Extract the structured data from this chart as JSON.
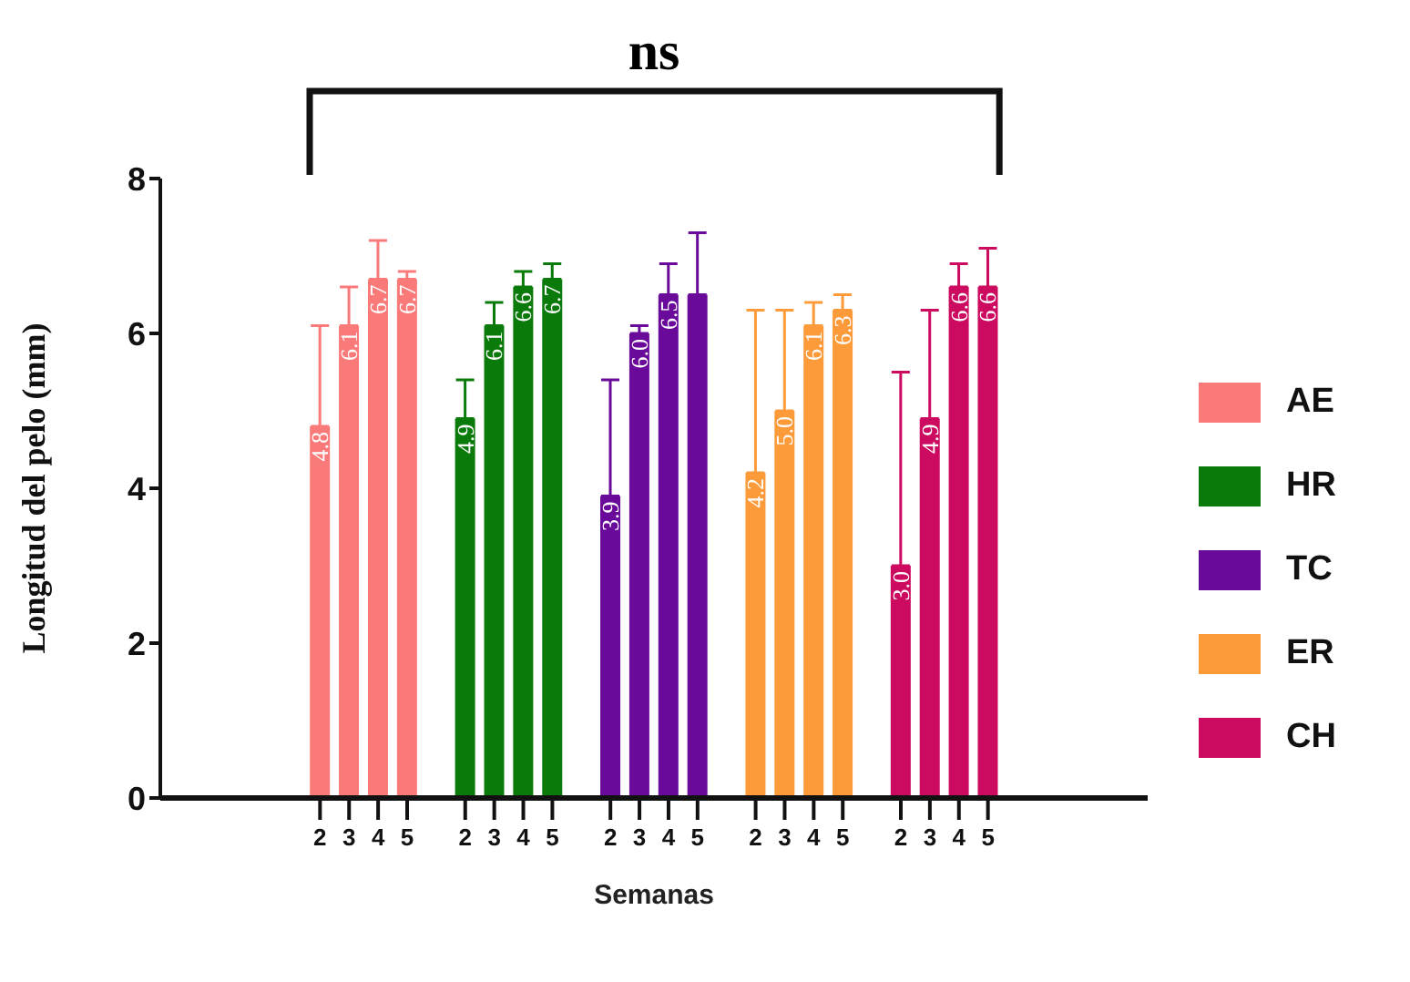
{
  "chart_data": {
    "type": "bar",
    "ylabel": "Longitud del pelo (mm)",
    "xlabel": "Semanas",
    "annotations": [
      "ns"
    ],
    "categories": [
      null,
      null,
      null,
      null,
      null,
      "2",
      "3",
      "4",
      "5",
      null,
      "2",
      "3",
      "4",
      "5",
      null,
      "2",
      "3",
      "4",
      "5",
      null,
      "2",
      "3",
      "4",
      "5",
      null,
      "2",
      "3",
      "4",
      "5",
      null,
      null,
      null,
      null,
      null
    ],
    "series": [
      {
        "name": "AE",
        "color": "#fa7a7a",
        "values": [
          null,
          null,
          null,
          null,
          null,
          4.8,
          6.1,
          6.7,
          6.7,
          null,
          null,
          null,
          null,
          null,
          null,
          null,
          null,
          null,
          null,
          null,
          null,
          null,
          null,
          null,
          null,
          null,
          null,
          null,
          null,
          null,
          null,
          null,
          null,
          null
        ],
        "errors": [
          null,
          null,
          null,
          null,
          null,
          [
            4.8,
            6.1
          ],
          [
            6.1,
            6.6
          ],
          [
            6.7,
            7.2
          ],
          [
            6.7,
            6.8
          ],
          null,
          null,
          null,
          null,
          null,
          null,
          null,
          null,
          null,
          null,
          null,
          null,
          null,
          null,
          null,
          null,
          null,
          null,
          null,
          null,
          null,
          null,
          null,
          null,
          null
        ],
        "value_labels": [
          null,
          null,
          null,
          null,
          null,
          "4.8",
          "6.1",
          "6.7",
          "6.7",
          null,
          null,
          null,
          null,
          null,
          null,
          null,
          null,
          null,
          null,
          null,
          null,
          null,
          null,
          null,
          null,
          null,
          null,
          null,
          null,
          null,
          null,
          null,
          null,
          null
        ]
      },
      {
        "name": "HR",
        "color": "#0a7a0a",
        "values": [
          null,
          null,
          null,
          null,
          null,
          null,
          null,
          null,
          null,
          null,
          4.9,
          6.1,
          6.6,
          6.7,
          null,
          null,
          null,
          null,
          null,
          null,
          null,
          null,
          null,
          null,
          null,
          null,
          null,
          null,
          null,
          null,
          null,
          null,
          null,
          null
        ],
        "errors": [
          null,
          null,
          null,
          null,
          null,
          null,
          null,
          null,
          null,
          null,
          [
            4.9,
            5.4
          ],
          [
            6.1,
            6.4
          ],
          [
            6.6,
            6.8
          ],
          [
            6.7,
            6.9
          ],
          null,
          null,
          null,
          null,
          null,
          null,
          null,
          null,
          null,
          null,
          null,
          null,
          null,
          null,
          null,
          null,
          null,
          null,
          null,
          null
        ],
        "value_labels": [
          null,
          null,
          null,
          null,
          null,
          null,
          null,
          null,
          null,
          null,
          "4.9",
          "6.1",
          "6.6",
          "6.7",
          null,
          null,
          null,
          null,
          null,
          null,
          null,
          null,
          null,
          null,
          null,
          null,
          null,
          null,
          null,
          null,
          null,
          null,
          null,
          null
        ]
      },
      {
        "name": "TC",
        "color": "#6a0a9a",
        "values": [
          null,
          null,
          null,
          null,
          null,
          null,
          null,
          null,
          null,
          null,
          null,
          null,
          null,
          null,
          null,
          3.9,
          6.0,
          6.5,
          6.5,
          null,
          null,
          null,
          null,
          null,
          null,
          null,
          null,
          null,
          null,
          null,
          null,
          null,
          null,
          null
        ],
        "errors": [
          null,
          null,
          null,
          null,
          null,
          null,
          null,
          null,
          null,
          null,
          null,
          null,
          null,
          null,
          null,
          [
            3.9,
            5.4
          ],
          [
            6.0,
            6.1
          ],
          [
            6.5,
            6.9
          ],
          [
            6.5,
            7.3
          ],
          null,
          null,
          null,
          null,
          null,
          null,
          null,
          null,
          null,
          null,
          null,
          null,
          null,
          null,
          null
        ],
        "value_labels": [
          null,
          null,
          null,
          null,
          null,
          null,
          null,
          null,
          null,
          null,
          null,
          null,
          null,
          null,
          null,
          "3.9",
          "6.0",
          "6.5",
          null,
          null,
          null,
          null,
          null,
          null,
          null,
          null,
          null,
          null,
          null,
          null,
          null,
          null,
          null,
          null
        ]
      },
      {
        "name": "ER",
        "color": "#fd9a3a",
        "values": [
          null,
          null,
          null,
          null,
          null,
          null,
          null,
          null,
          null,
          null,
          null,
          null,
          null,
          null,
          null,
          null,
          null,
          null,
          null,
          null,
          4.2,
          5.0,
          6.1,
          6.3,
          null,
          null,
          null,
          null,
          null,
          null,
          null,
          null,
          null,
          null
        ],
        "errors": [
          null,
          null,
          null,
          null,
          null,
          null,
          null,
          null,
          null,
          null,
          null,
          null,
          null,
          null,
          null,
          null,
          null,
          null,
          null,
          null,
          [
            4.2,
            6.3
          ],
          [
            5.0,
            6.3
          ],
          [
            6.1,
            6.4
          ],
          [
            6.3,
            6.5
          ],
          null,
          null,
          null,
          null,
          null,
          null,
          null,
          null,
          null,
          null
        ],
        "value_labels": [
          null,
          null,
          null,
          null,
          null,
          null,
          null,
          null,
          null,
          null,
          null,
          null,
          null,
          null,
          null,
          null,
          null,
          null,
          null,
          null,
          "4.2",
          "5.0",
          "6.1",
          "6.3",
          null,
          null,
          null,
          null,
          null,
          null,
          null,
          null,
          null,
          null
        ]
      },
      {
        "name": "CH",
        "color": "#cc0a60",
        "values": [
          null,
          null,
          null,
          null,
          null,
          null,
          null,
          null,
          null,
          null,
          null,
          null,
          null,
          null,
          null,
          null,
          null,
          null,
          null,
          null,
          null,
          null,
          null,
          null,
          null,
          3.0,
          4.9,
          6.6,
          6.6,
          null,
          null,
          null,
          null,
          null
        ],
        "errors": [
          null,
          null,
          null,
          null,
          null,
          null,
          null,
          null,
          null,
          null,
          null,
          null,
          null,
          null,
          null,
          null,
          null,
          null,
          null,
          null,
          null,
          null,
          null,
          null,
          null,
          [
            3.0,
            5.5
          ],
          [
            4.9,
            6.3
          ],
          [
            6.6,
            6.9
          ],
          [
            6.6,
            7.1
          ],
          null,
          null,
          null,
          null,
          null
        ],
        "value_labels": [
          null,
          null,
          null,
          null,
          null,
          null,
          null,
          null,
          null,
          null,
          null,
          null,
          null,
          null,
          null,
          null,
          null,
          null,
          null,
          null,
          null,
          null,
          null,
          null,
          null,
          "3.0",
          "4.9",
          "6.6",
          "6.6",
          null,
          null,
          null,
          null,
          null
        ]
      }
    ],
    "ylim": [
      0,
      8
    ],
    "yticks": [
      0,
      2,
      4,
      6,
      8
    ],
    "legend": "right",
    "grid": false
  }
}
